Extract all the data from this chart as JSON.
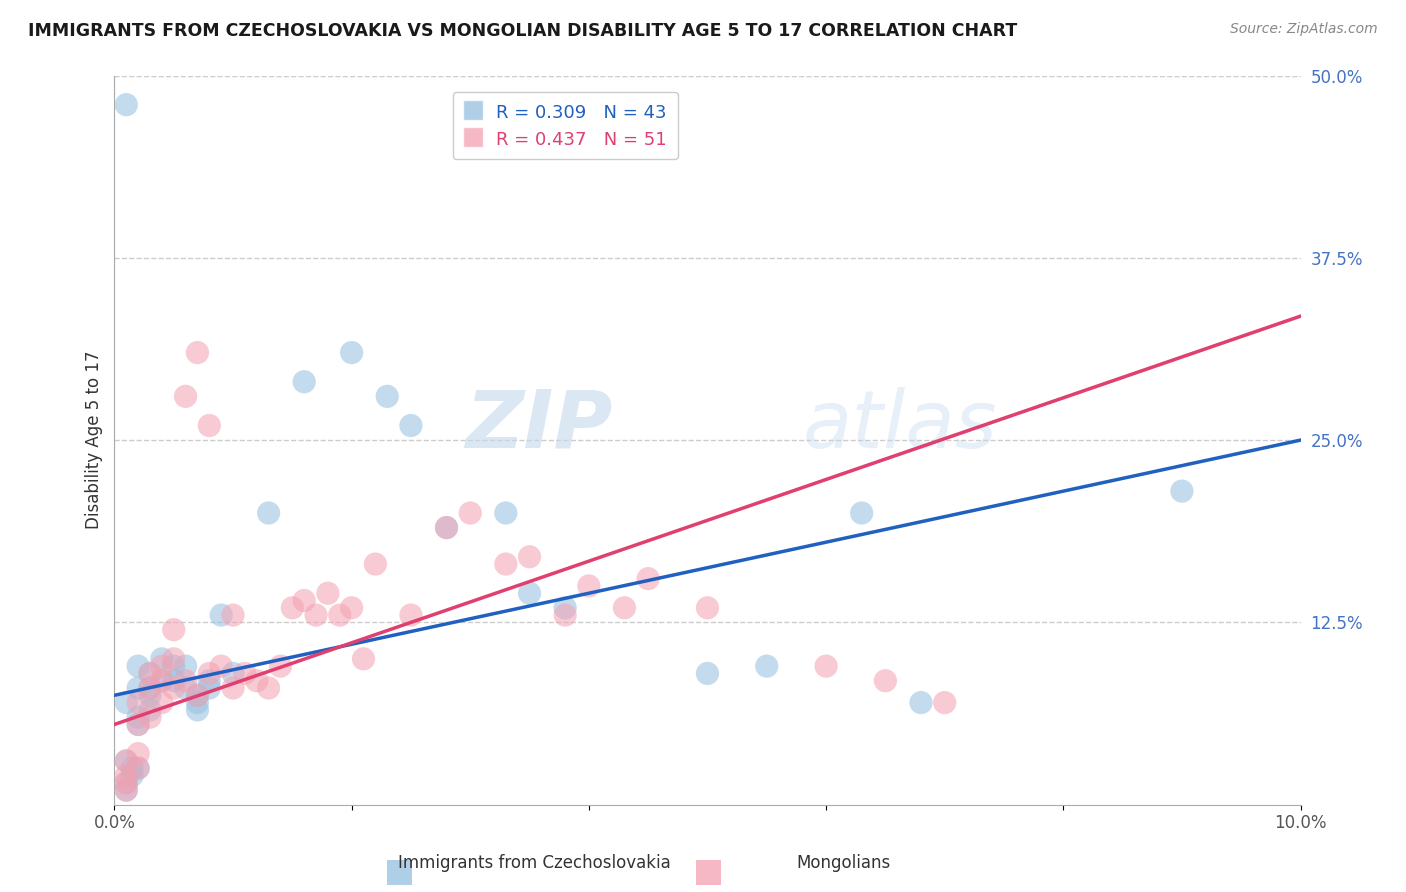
{
  "title": "IMMIGRANTS FROM CZECHOSLOVAKIA VS MONGOLIAN DISABILITY AGE 5 TO 17 CORRELATION CHART",
  "source": "Source: ZipAtlas.com",
  "ylabel": "Disability Age 5 to 17",
  "xlim": [
    0.0,
    0.1
  ],
  "ylim": [
    0.0,
    0.5
  ],
  "R_blue": 0.309,
  "N_blue": 43,
  "R_pink": 0.437,
  "N_pink": 51,
  "blue_color": "#94bfe0",
  "pink_color": "#f4a0b0",
  "line_blue": "#2060c0",
  "line_pink": "#e04070",
  "line_dash": "#c0a0a8",
  "legend_label_blue": "Immigrants from Czechoslovakia",
  "legend_label_pink": "Mongolians",
  "blue_scatter_x": [
    0.0015,
    0.0015,
    0.001,
    0.001,
    0.002,
    0.001,
    0.002,
    0.002,
    0.003,
    0.001,
    0.002,
    0.003,
    0.003,
    0.002,
    0.004,
    0.003,
    0.004,
    0.005,
    0.005,
    0.006,
    0.007,
    0.006,
    0.007,
    0.007,
    0.008,
    0.008,
    0.009,
    0.01,
    0.013,
    0.016,
    0.02,
    0.023,
    0.025,
    0.028,
    0.035,
    0.038,
    0.033,
    0.05,
    0.055,
    0.063,
    0.068,
    0.09,
    0.001
  ],
  "blue_scatter_y": [
    0.025,
    0.02,
    0.015,
    0.01,
    0.025,
    0.03,
    0.055,
    0.06,
    0.075,
    0.07,
    0.08,
    0.08,
    0.09,
    0.095,
    0.085,
    0.065,
    0.1,
    0.085,
    0.095,
    0.08,
    0.075,
    0.095,
    0.07,
    0.065,
    0.08,
    0.085,
    0.13,
    0.09,
    0.2,
    0.29,
    0.31,
    0.28,
    0.26,
    0.19,
    0.145,
    0.135,
    0.2,
    0.09,
    0.095,
    0.2,
    0.07,
    0.215,
    0.48
  ],
  "pink_scatter_x": [
    0.001,
    0.001,
    0.001,
    0.001,
    0.002,
    0.002,
    0.002,
    0.002,
    0.003,
    0.003,
    0.003,
    0.004,
    0.004,
    0.004,
    0.005,
    0.005,
    0.005,
    0.006,
    0.006,
    0.007,
    0.007,
    0.008,
    0.008,
    0.009,
    0.01,
    0.01,
    0.011,
    0.012,
    0.013,
    0.014,
    0.015,
    0.016,
    0.017,
    0.018,
    0.019,
    0.02,
    0.021,
    0.022,
    0.025,
    0.028,
    0.03,
    0.033,
    0.035,
    0.038,
    0.04,
    0.043,
    0.045,
    0.05,
    0.06,
    0.065,
    0.07
  ],
  "pink_scatter_y": [
    0.02,
    0.015,
    0.01,
    0.03,
    0.025,
    0.035,
    0.055,
    0.07,
    0.06,
    0.08,
    0.09,
    0.07,
    0.085,
    0.095,
    0.08,
    0.1,
    0.12,
    0.085,
    0.28,
    0.075,
    0.31,
    0.09,
    0.26,
    0.095,
    0.08,
    0.13,
    0.09,
    0.085,
    0.08,
    0.095,
    0.135,
    0.14,
    0.13,
    0.145,
    0.13,
    0.135,
    0.1,
    0.165,
    0.13,
    0.19,
    0.2,
    0.165,
    0.17,
    0.13,
    0.15,
    0.135,
    0.155,
    0.135,
    0.095,
    0.085,
    0.07
  ],
  "watermark_zip": "ZIP",
  "watermark_atlas": "atlas",
  "background_color": "#ffffff",
  "grid_color": "#cccccc",
  "blue_line_intercept": 0.075,
  "blue_line_slope": 1.75,
  "pink_line_intercept": 0.055,
  "pink_line_slope": 2.8
}
